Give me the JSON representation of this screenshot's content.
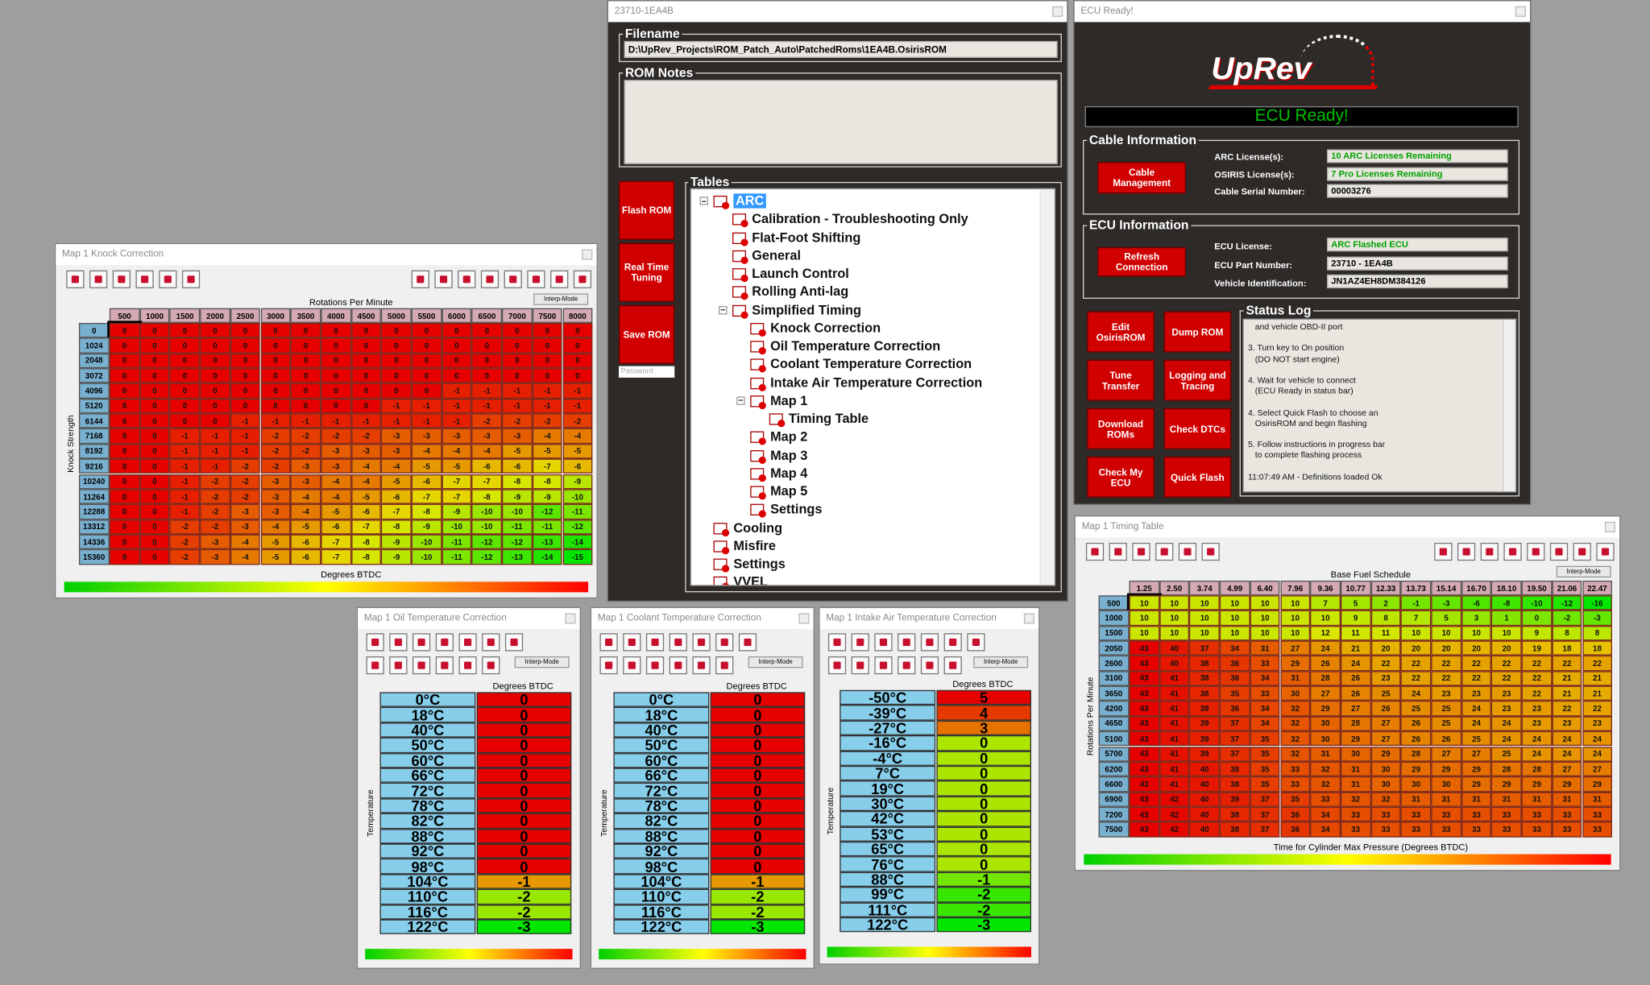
{
  "knock_window": {
    "title": "Map 1 Knock Correction",
    "interp_button": "Interp-Mode",
    "column_axis_label": "Rotations Per Minute",
    "row_axis_label": "Knock Strength",
    "value_label": "Degrees BTDC",
    "columns": [
      500,
      1000,
      1500,
      2000,
      2500,
      3000,
      3500,
      4000,
      4500,
      5000,
      5500,
      6000,
      6500,
      7000,
      7500,
      8000
    ],
    "rows": [
      0,
      1024,
      2048,
      3072,
      4096,
      5120,
      6144,
      7168,
      8192,
      9216,
      10240,
      11264,
      12288,
      13312,
      14336,
      15360
    ],
    "values": [
      [
        0,
        0,
        0,
        0,
        0,
        0,
        0,
        0,
        0,
        0,
        0,
        0,
        0,
        0,
        0,
        0
      ],
      [
        0,
        0,
        0,
        0,
        0,
        0,
        0,
        0,
        0,
        0,
        0,
        0,
        0,
        0,
        0,
        0
      ],
      [
        0,
        0,
        0,
        0,
        0,
        0,
        0,
        0,
        0,
        0,
        0,
        0,
        0,
        0,
        0,
        0
      ],
      [
        0,
        0,
        0,
        0,
        0,
        0,
        0,
        0,
        0,
        0,
        0,
        0,
        0,
        0,
        0,
        0
      ],
      [
        0,
        0,
        0,
        0,
        0,
        0,
        0,
        0,
        0,
        0,
        0,
        -1,
        -1,
        -1,
        -1,
        -1
      ],
      [
        0,
        0,
        0,
        0,
        0,
        0,
        0,
        0,
        0,
        -1,
        -1,
        -1,
        -1,
        -1,
        -1,
        -1
      ],
      [
        0,
        0,
        0,
        0,
        -1,
        -1,
        -1,
        -1,
        -1,
        -1,
        -1,
        -1,
        -2,
        -2,
        -2,
        -2
      ],
      [
        0,
        0,
        -1,
        -1,
        -1,
        -2,
        -2,
        -2,
        -2,
        -3,
        -3,
        -3,
        -3,
        -3,
        -4,
        -4
      ],
      [
        0,
        0,
        -1,
        -1,
        -1,
        -2,
        -2,
        -3,
        -3,
        -3,
        -4,
        -4,
        -4,
        -5,
        -5,
        -5
      ],
      [
        0,
        0,
        -1,
        -1,
        -2,
        -2,
        -3,
        -3,
        -4,
        -4,
        -5,
        -5,
        -6,
        -6,
        -7,
        -6
      ],
      [
        0,
        0,
        -1,
        -2,
        -2,
        -3,
        -3,
        -4,
        -4,
        -5,
        -6,
        -7,
        -7,
        -8,
        -8,
        -9
      ],
      [
        0,
        0,
        -1,
        -2,
        -2,
        -3,
        -4,
        -4,
        -5,
        -6,
        -7,
        -7,
        -8,
        -9,
        -9,
        -10
      ],
      [
        0,
        0,
        -1,
        -2,
        -3,
        -3,
        -4,
        -5,
        -6,
        -7,
        -8,
        -9,
        -10,
        -10,
        -12,
        -11
      ],
      [
        0,
        0,
        -2,
        -2,
        -3,
        -4,
        -5,
        -6,
        -7,
        -8,
        -9,
        -10,
        -10,
        -11,
        -11,
        -12
      ],
      [
        0,
        0,
        -2,
        -3,
        -4,
        -5,
        -6,
        -7,
        -8,
        -9,
        -10,
        -11,
        -12,
        -12,
        -13,
        -14
      ],
      [
        0,
        0,
        -2,
        -3,
        -4,
        -5,
        -6,
        -7,
        -8,
        -9,
        -10,
        -11,
        -12,
        -13,
        -14,
        -15
      ]
    ]
  },
  "rom_window": {
    "title": "23710-1EA4B",
    "filename_label": "Filename",
    "filename": "D:\\UpRev_Projects\\ROM_Patch_Auto\\PatchedRoms\\1EA4B.OsirisROM",
    "notes_label": "ROM Notes",
    "buttons": [
      "Flash ROM",
      "Real Time Tuning",
      "Save ROM"
    ],
    "password_placeholder": "Password",
    "tables_label": "Tables",
    "tree": [
      {
        "label": "ARC",
        "children": [
          {
            "label": "Calibration - Troubleshooting Only"
          },
          {
            "label": "Flat-Foot Shifting"
          },
          {
            "label": "General"
          },
          {
            "label": "Launch Control"
          },
          {
            "label": "Rolling Anti-lag"
          },
          {
            "label": "Simplified Timing",
            "children": [
              {
                "label": "Knock Correction"
              },
              {
                "label": "Oil Temperature Correction"
              },
              {
                "label": "Coolant Temperature Correction"
              },
              {
                "label": "Intake Air Temperature Correction"
              },
              {
                "label": "Map 1",
                "children": [
                  {
                    "label": "Timing Table"
                  }
                ]
              },
              {
                "label": "Map 2"
              },
              {
                "label": "Map 3"
              },
              {
                "label": "Map 4"
              },
              {
                "label": "Map 5"
              },
              {
                "label": "Settings"
              }
            ]
          }
        ]
      },
      {
        "label": "Cooling"
      },
      {
        "label": "Misfire"
      },
      {
        "label": "Settings"
      },
      {
        "label": "VVEL"
      }
    ]
  },
  "ecu_window": {
    "title": "ECU Ready!",
    "logo": "UpRev",
    "status": "ECU Ready!",
    "cable_group": "Cable Information",
    "cable_button": "Cable Management",
    "cable_fields": [
      {
        "label": "ARC License(s):",
        "value": "10 ARC Licenses Remaining"
      },
      {
        "label": "OSIRIS License(s):",
        "value": "7 Pro Licenses Remaining"
      },
      {
        "label": "Cable Serial Number:",
        "value": "00003276"
      }
    ],
    "ecu_group": "ECU Information",
    "refresh_button": "Refresh Connection",
    "ecu_fields": [
      {
        "label": "ECU License:",
        "value": "ARC Flashed ECU"
      },
      {
        "label": "ECU Part Number:",
        "value": "23710 - 1EA4B"
      },
      {
        "label": "Vehicle Identification:",
        "value": "JN1AZ4EH8DM384126"
      }
    ],
    "buttons": [
      "Edit OsirisROM",
      "Dump ROM",
      "Tune Transfer",
      "Logging and Tracing",
      "Download ROMs",
      "Check DTCs",
      "Check My ECU",
      "Quick Flash"
    ],
    "log_group": "Status Log",
    "log_lines": [
      "   and vehicle OBD-II port",
      "",
      "3. Turn key to On position",
      "   (DO NOT start engine)",
      "",
      "4. Wait for vehicle to connect",
      "   (ECU Ready in status bar)",
      "",
      "4. Select Quick Flash to choose an",
      "   OsirisROM and begin flashing",
      "",
      "5. Follow instructions in progress bar",
      "   to complete flashing process",
      "",
      "11:07:49 AM - Definitions loaded Ok"
    ]
  },
  "timing_window": {
    "title": "Map 1 Timing Table",
    "interp_button": "Interp-Mode",
    "column_axis_label": "Base Fuel Schedule",
    "row_axis_label": "Rotations Per Minute",
    "value_label": "Time for Cylinder Max Pressure (Degrees BTDC)",
    "columns": [
      "1.25",
      "2.50",
      "3.74",
      "4.99",
      "6.40",
      "7.96",
      "9.36",
      "10.77",
      "12.33",
      "13.73",
      "15.14",
      "16.70",
      "18.10",
      "19.50",
      "21.06",
      "22.47"
    ],
    "rows": [
      500,
      1000,
      1500,
      2050,
      2600,
      3100,
      3650,
      4200,
      4650,
      5100,
      5700,
      6200,
      6600,
      6900,
      7200,
      7500
    ],
    "values": [
      [
        10,
        10,
        10,
        10,
        10,
        10,
        7,
        5,
        2,
        -1,
        -3,
        -6,
        -8,
        -10,
        -12,
        -16
      ],
      [
        10,
        10,
        10,
        10,
        10,
        10,
        10,
        9,
        8,
        7,
        5,
        3,
        1,
        0,
        -2,
        -3
      ],
      [
        10,
        10,
        10,
        10,
        10,
        10,
        12,
        11,
        11,
        10,
        10,
        10,
        10,
        9,
        8,
        8
      ],
      [
        43,
        40,
        37,
        34,
        31,
        27,
        24,
        21,
        20,
        20,
        20,
        20,
        20,
        19,
        18,
        18
      ],
      [
        43,
        40,
        38,
        36,
        33,
        29,
        26,
        24,
        22,
        22,
        22,
        22,
        22,
        22,
        22,
        22
      ],
      [
        43,
        41,
        38,
        36,
        34,
        31,
        28,
        26,
        23,
        22,
        22,
        22,
        22,
        22,
        21,
        21
      ],
      [
        43,
        41,
        38,
        35,
        33,
        30,
        27,
        26,
        25,
        24,
        23,
        23,
        23,
        22,
        21,
        21
      ],
      [
        43,
        41,
        39,
        36,
        34,
        32,
        29,
        27,
        26,
        25,
        25,
        24,
        23,
        23,
        22,
        22
      ],
      [
        43,
        41,
        39,
        37,
        34,
        32,
        30,
        28,
        27,
        26,
        25,
        24,
        24,
        23,
        23,
        23
      ],
      [
        43,
        41,
        39,
        37,
        35,
        32,
        30,
        29,
        27,
        26,
        26,
        25,
        24,
        24,
        24,
        24
      ],
      [
        43,
        41,
        39,
        37,
        35,
        32,
        31,
        30,
        29,
        28,
        27,
        27,
        25,
        24,
        24,
        24
      ],
      [
        43,
        41,
        40,
        38,
        35,
        33,
        32,
        31,
        30,
        29,
        29,
        29,
        28,
        28,
        27,
        27
      ],
      [
        43,
        41,
        40,
        38,
        35,
        33,
        32,
        31,
        30,
        30,
        30,
        29,
        29,
        29,
        29,
        29
      ],
      [
        43,
        42,
        40,
        39,
        37,
        35,
        33,
        32,
        32,
        31,
        31,
        31,
        31,
        31,
        31,
        31
      ],
      [
        43,
        42,
        40,
        38,
        37,
        36,
        34,
        33,
        33,
        33,
        33,
        33,
        33,
        33,
        33,
        33
      ],
      [
        43,
        42,
        40,
        38,
        37,
        36,
        34,
        33,
        33,
        33,
        33,
        33,
        33,
        33,
        33,
        33
      ]
    ]
  },
  "oil_window": {
    "title": "Map 1 Oil Temperature Correction",
    "interp_button": "Interp-Mode",
    "value_label": "Degrees BTDC",
    "row_axis_label": "Temperature",
    "rows": [
      "0°C",
      "18°C",
      "40°C",
      "50°C",
      "60°C",
      "66°C",
      "72°C",
      "78°C",
      "82°C",
      "88°C",
      "92°C",
      "98°C",
      "104°C",
      "110°C",
      "116°C",
      "122°C"
    ],
    "values": [
      0,
      0,
      0,
      0,
      0,
      0,
      0,
      0,
      0,
      0,
      0,
      0,
      -1,
      -2,
      -2,
      -3
    ]
  },
  "coolant_window": {
    "title": "Map 1 Coolant Temperature Correction",
    "interp_button": "Interp-Mode",
    "value_label": "Degrees BTDC",
    "row_axis_label": "Temperature",
    "rows": [
      "0°C",
      "18°C",
      "40°C",
      "50°C",
      "60°C",
      "66°C",
      "72°C",
      "78°C",
      "82°C",
      "88°C",
      "92°C",
      "98°C",
      "104°C",
      "110°C",
      "116°C",
      "122°C"
    ],
    "values": [
      0,
      0,
      0,
      0,
      0,
      0,
      0,
      0,
      0,
      0,
      0,
      0,
      -1,
      -2,
      -2,
      -3
    ]
  },
  "intake_window": {
    "title": "Map 1 Intake Air Temperature Correction",
    "interp_button": "Interp-Mode",
    "value_label": "Degrees BTDC",
    "row_axis_label": "Temperature",
    "rows": [
      "-50°C",
      "-39°C",
      "-27°C",
      "-16°C",
      "-4°C",
      "7°C",
      "19°C",
      "30°C",
      "42°C",
      "53°C",
      "65°C",
      "76°C",
      "88°C",
      "99°C",
      "111°C",
      "122°C"
    ],
    "values": [
      5,
      4,
      3,
      0,
      0,
      0,
      0,
      0,
      0,
      0,
      0,
      0,
      -1,
      -2,
      -2,
      -3
    ]
  }
}
